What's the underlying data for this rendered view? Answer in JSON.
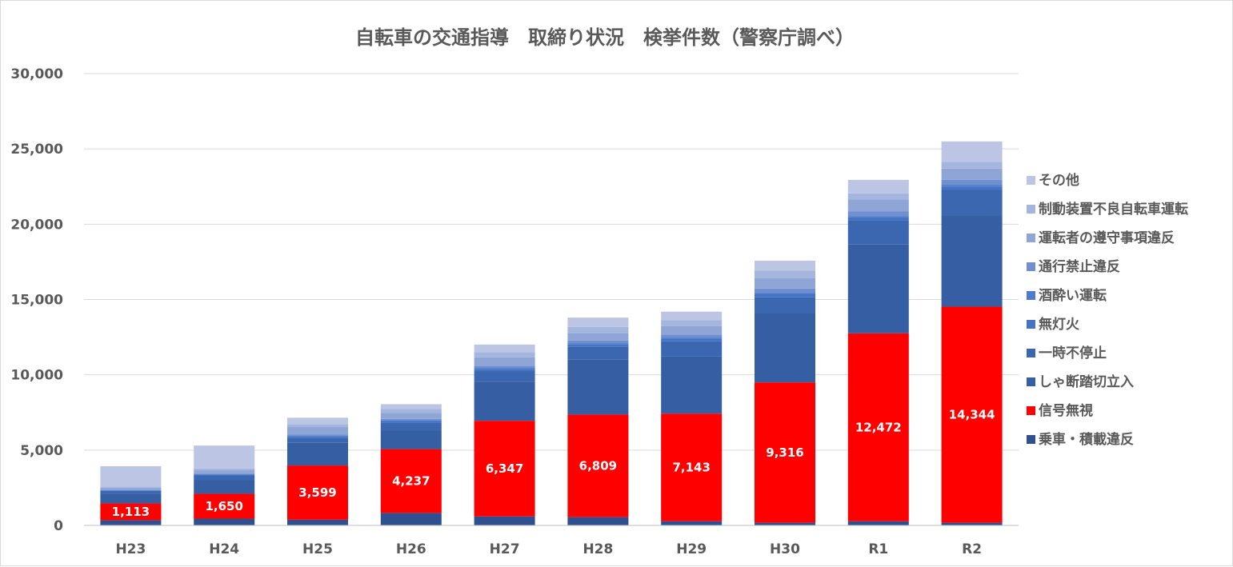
{
  "chart_data": {
    "type": "bar",
    "stacked": true,
    "title": "自転車の交通指導　取締り状況　検挙件数（警察庁調べ）",
    "categories": [
      "H23",
      "H24",
      "H25",
      "H26",
      "H27",
      "H28",
      "H29",
      "H30",
      "R1",
      "R2"
    ],
    "ylim": [
      0,
      30000
    ],
    "yticks": [
      0,
      5000,
      10000,
      15000,
      20000,
      25000,
      30000
    ],
    "ytick_labels": [
      "0",
      "5,000",
      "10,000",
      "15,000",
      "20,000",
      "25,000",
      "30,000"
    ],
    "grid": true,
    "legend_position": "right",
    "series": [
      {
        "name": "乗車・積載違反",
        "color": "#2f4f8f",
        "values": [
          350,
          450,
          380,
          830,
          600,
          550,
          280,
          180,
          280,
          180
        ],
        "show_labels": false
      },
      {
        "name": "信号無視",
        "color": "#ff0000",
        "values": [
          1113,
          1650,
          3599,
          4237,
          6347,
          6809,
          7143,
          9316,
          12472,
          14344
        ],
        "show_labels": true,
        "labels": [
          "1,113",
          "1,650",
          "3,599",
          "4,237",
          "6,347",
          "6,809",
          "7,143",
          "9,316",
          "12,472",
          "14,344"
        ]
      },
      {
        "name": "しゃ断踏切立入",
        "color": "#365ea3",
        "values": [
          630,
          900,
          1500,
          1250,
          2600,
          3650,
          3800,
          4600,
          5900,
          6050
        ],
        "show_labels": false
      },
      {
        "name": "一時不停止",
        "color": "#3b67b0",
        "values": [
          200,
          320,
          350,
          500,
          700,
          850,
          1000,
          1050,
          1600,
          1700
        ],
        "show_labels": false
      },
      {
        "name": "無灯火",
        "color": "#4472c4",
        "values": [
          40,
          60,
          80,
          110,
          150,
          160,
          180,
          200,
          210,
          230
        ],
        "show_labels": false
      },
      {
        "name": "酒酔い運転",
        "color": "#4e7bcb",
        "values": [
          20,
          30,
          40,
          50,
          60,
          60,
          70,
          80,
          80,
          90
        ],
        "show_labels": false
      },
      {
        "name": "通行禁止違反",
        "color": "#6f8fd0",
        "values": [
          30,
          50,
          80,
          100,
          150,
          200,
          200,
          300,
          300,
          350
        ],
        "show_labels": false
      },
      {
        "name": "運転者の遵守事項違反",
        "color": "#8ea5d6",
        "values": [
          120,
          200,
          500,
          400,
          550,
          500,
          550,
          700,
          800,
          750
        ],
        "show_labels": false
      },
      {
        "name": "制動装置不良自転車運転",
        "color": "#a5b6de",
        "values": [
          80,
          120,
          200,
          250,
          350,
          400,
          400,
          500,
          400,
          450
        ],
        "show_labels": false
      },
      {
        "name": "その他",
        "color": "#bcc6e4",
        "values": [
          1350,
          1520,
          420,
          320,
          500,
          620,
          570,
          650,
          900,
          1350
        ],
        "show_labels": false
      }
    ]
  }
}
